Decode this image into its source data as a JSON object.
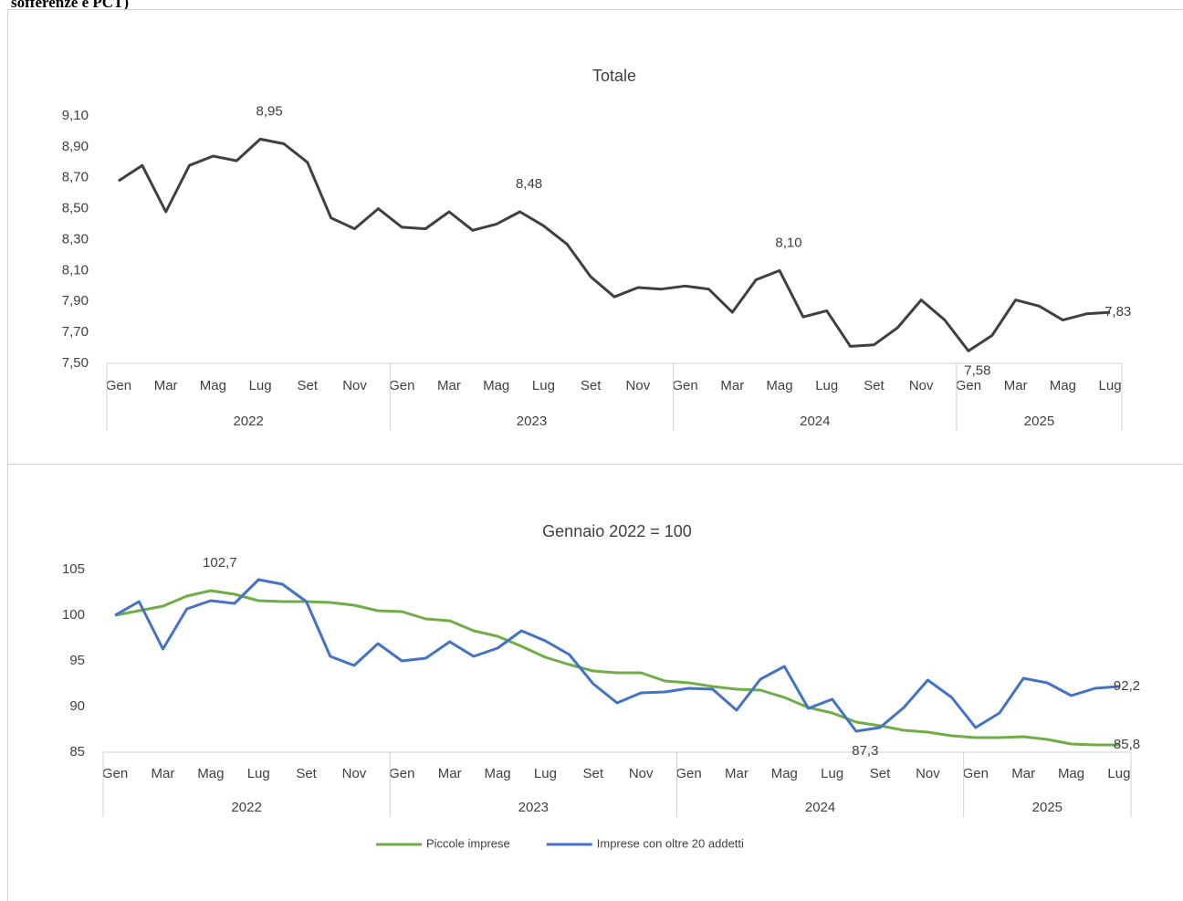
{
  "header": {
    "text": "sofferenze e PCT)"
  },
  "chart_data": [
    {
      "type": "line",
      "title": "Totale",
      "categories": [
        "Gen",
        null,
        "Mar",
        null,
        "Mag",
        null,
        "Lug",
        null,
        "Set",
        null,
        "Nov",
        null,
        "Gen",
        null,
        "Mar",
        null,
        "Mag",
        null,
        "Lug",
        null,
        "Set",
        null,
        "Nov",
        null,
        "Gen",
        null,
        "Mar",
        null,
        "Mag",
        null,
        "Lug",
        null,
        "Set",
        null,
        "Nov",
        null,
        "Gen",
        null,
        "Mar",
        null,
        "Mag",
        null,
        "Lug"
      ],
      "category_groups": [
        "2022",
        "2023",
        "2024",
        "2025"
      ],
      "series": [
        {
          "color": "#404040",
          "values": [
            8.68,
            8.78,
            8.48,
            8.78,
            8.84,
            8.81,
            8.95,
            8.92,
            8.8,
            8.44,
            8.37,
            8.5,
            8.38,
            8.37,
            8.48,
            8.36,
            8.4,
            8.48,
            8.39,
            8.27,
            8.06,
            7.93,
            7.99,
            7.98,
            8.0,
            7.98,
            7.83,
            8.04,
            8.1,
            7.8,
            7.84,
            7.61,
            7.62,
            7.73,
            7.91,
            7.78,
            7.58,
            7.68,
            7.91,
            7.87,
            7.78,
            7.82,
            7.83
          ],
          "value_labels": [
            null,
            null,
            null,
            null,
            null,
            null,
            "8,95",
            null,
            null,
            null,
            null,
            null,
            null,
            null,
            null,
            null,
            null,
            "8,48",
            null,
            null,
            null,
            null,
            null,
            null,
            null,
            null,
            null,
            null,
            "8,10",
            null,
            null,
            null,
            null,
            null,
            null,
            null,
            "7,58",
            null,
            null,
            null,
            null,
            null,
            "7,83"
          ]
        }
      ],
      "ylim": [
        7.5,
        9.1
      ],
      "yticks": [
        {
          "value": 7.5,
          "label": "7,50"
        },
        {
          "value": 7.7,
          "label": "7,70"
        },
        {
          "value": 7.9,
          "label": "7,90"
        },
        {
          "value": 8.1,
          "label": "8,10"
        },
        {
          "value": 8.3,
          "label": "8,30"
        },
        {
          "value": 8.5,
          "label": "8,50"
        },
        {
          "value": 8.7,
          "label": "8,70"
        },
        {
          "value": 8.9,
          "label": "8,90"
        },
        {
          "value": 9.1,
          "label": "9,10"
        }
      ],
      "grid": false
    },
    {
      "type": "line",
      "title": "Gennaio 2022 = 100",
      "categories": [
        "Gen",
        null,
        "Mar",
        null,
        "Mag",
        null,
        "Lug",
        null,
        "Set",
        null,
        "Nov",
        null,
        "Gen",
        null,
        "Mar",
        null,
        "Mag",
        null,
        "Lug",
        null,
        "Set",
        null,
        "Nov",
        null,
        "Gen",
        null,
        "Mar",
        null,
        "Mag",
        null,
        "Lug",
        null,
        "Set",
        null,
        "Nov",
        null,
        "Gen",
        null,
        "Mar",
        null,
        "Mag",
        null,
        "Lug"
      ],
      "category_groups": [
        "2022",
        "2023",
        "2024",
        "2025"
      ],
      "series": [
        {
          "name": "Piccole imprese",
          "color": "#70ad47",
          "values": [
            100,
            100.5,
            101,
            102.1,
            102.7,
            102.3,
            101.6,
            101.5,
            101.5,
            101.4,
            101.1,
            100.5,
            100.4,
            99.6,
            99.4,
            98.3,
            97.7,
            96.6,
            95.4,
            94.6,
            93.9,
            93.7,
            93.7,
            92.8,
            92.6,
            92.2,
            91.9,
            91.8,
            91.0,
            89.9,
            89.3,
            88.3,
            87.9,
            87.4,
            87.2,
            86.8,
            86.6,
            86.6,
            86.7,
            86.4,
            85.9,
            85.8,
            85.8
          ],
          "value_labels": [
            null,
            null,
            null,
            null,
            "102,7",
            null,
            null,
            null,
            null,
            null,
            null,
            null,
            null,
            null,
            null,
            null,
            null,
            null,
            null,
            null,
            null,
            null,
            null,
            null,
            null,
            null,
            null,
            null,
            null,
            null,
            null,
            null,
            null,
            null,
            null,
            null,
            null,
            null,
            null,
            null,
            null,
            null,
            "85,8"
          ]
        },
        {
          "name": "Imprese con oltre 20 addetti",
          "color": "#4472c4",
          "values": [
            100,
            101.5,
            96.3,
            100.7,
            101.6,
            101.3,
            103.9,
            103.4,
            101.5,
            95.5,
            94.5,
            96.9,
            95.0,
            95.3,
            97.1,
            95.5,
            96.4,
            98.3,
            97.2,
            95.7,
            92.5,
            90.4,
            91.5,
            91.6,
            92.0,
            91.9,
            89.6,
            93.0,
            94.4,
            89.8,
            90.8,
            87.3,
            87.7,
            89.9,
            92.9,
            91.0,
            87.7,
            89.3,
            93.1,
            92.6,
            91.2,
            92.0,
            92.2
          ],
          "value_labels": [
            null,
            null,
            null,
            null,
            null,
            null,
            null,
            null,
            null,
            null,
            null,
            null,
            null,
            null,
            null,
            null,
            null,
            null,
            null,
            null,
            null,
            null,
            null,
            null,
            null,
            null,
            null,
            null,
            null,
            null,
            null,
            "87,3",
            null,
            null,
            null,
            null,
            null,
            null,
            null,
            null,
            null,
            null,
            "92,2"
          ]
        }
      ],
      "ylim": [
        85,
        105
      ],
      "yticks": [
        85,
        90,
        95,
        100,
        105
      ],
      "grid": false
    }
  ]
}
